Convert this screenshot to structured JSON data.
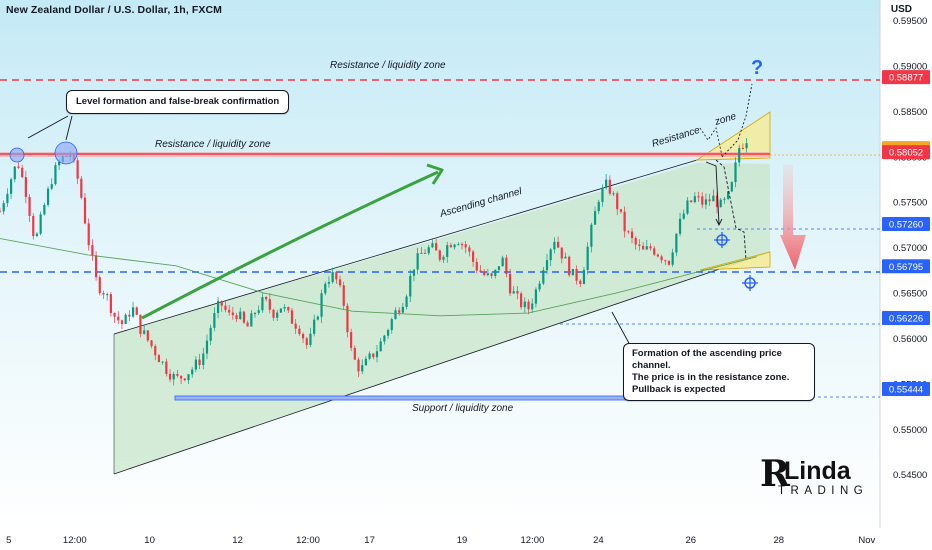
{
  "header": {
    "title": "New Zealand Dollar / U.S. Dollar, 1h, FXCM",
    "currency": "USD"
  },
  "chart_data": {
    "type": "candlestick",
    "symbol": "NZDUSD",
    "timeframe": "1h",
    "ylim": [
      0.542,
      0.5955
    ],
    "y_ticks": [
      "0.59500",
      "0.59000",
      "0.58500",
      "0.58000",
      "0.57500",
      "0.57000",
      "0.56500",
      "0.56000",
      "0.55500",
      "0.55000",
      "0.54500"
    ],
    "x_ticks": [
      "5",
      "12:00",
      "10",
      "12",
      "12:00",
      "17",
      "19",
      "12:00",
      "24",
      "26",
      "28",
      "Nov"
    ],
    "x_domain": [
      0,
      100
    ],
    "x_tick_positions": [
      1,
      8.5,
      17,
      27,
      35,
      42,
      52.5,
      60.5,
      68,
      78.5,
      88.5,
      98.5
    ],
    "price_tags": [
      {
        "value": "0.58877",
        "price": 0.58877,
        "color": "#f23645"
      },
      {
        "value": "0.58095",
        "price": 0.58095,
        "color": "#f5a623"
      },
      {
        "value": "0.58052",
        "price": 0.58052,
        "color": "#f23645"
      },
      {
        "value": "0.57260",
        "price": 0.5726,
        "color": "#2962ff"
      },
      {
        "value": "0.56795",
        "price": 0.56795,
        "color": "#2962ff"
      },
      {
        "value": "0.56226",
        "price": 0.56226,
        "color": "#2962ff"
      },
      {
        "value": "0.55444",
        "price": 0.55444,
        "color": "#2962ff"
      }
    ],
    "price_path": [
      [
        0,
        0.574
      ],
      [
        1,
        0.577
      ],
      [
        2,
        0.5795
      ],
      [
        3,
        0.576
      ],
      [
        4,
        0.5705
      ],
      [
        5,
        0.5745
      ],
      [
        6,
        0.578
      ],
      [
        7,
        0.5798
      ],
      [
        8,
        0.5803
      ],
      [
        9,
        0.577
      ],
      [
        10,
        0.571
      ],
      [
        11,
        0.566
      ],
      [
        12,
        0.565
      ],
      [
        13,
        0.5625
      ],
      [
        14,
        0.5615
      ],
      [
        15,
        0.5635
      ],
      [
        16,
        0.561
      ],
      [
        17,
        0.5595
      ],
      [
        18,
        0.558
      ],
      [
        19,
        0.5565
      ],
      [
        20,
        0.5555
      ],
      [
        21,
        0.556
      ],
      [
        22,
        0.5568
      ],
      [
        23,
        0.558
      ],
      [
        24,
        0.5615
      ],
      [
        25,
        0.564
      ],
      [
        26,
        0.5625
      ],
      [
        27,
        0.5628
      ],
      [
        28,
        0.561
      ],
      [
        29,
        0.563
      ],
      [
        30,
        0.5642
      ],
      [
        31,
        0.5628
      ],
      [
        32,
        0.5636
      ],
      [
        33,
        0.5622
      ],
      [
        34,
        0.5612
      ],
      [
        35,
        0.559
      ],
      [
        36,
        0.5625
      ],
      [
        37,
        0.5665
      ],
      [
        38,
        0.567
      ],
      [
        39,
        0.5642
      ],
      [
        40,
        0.558
      ],
      [
        41,
        0.5565
      ],
      [
        42,
        0.5578
      ],
      [
        43,
        0.559
      ],
      [
        44,
        0.561
      ],
      [
        45,
        0.563
      ],
      [
        46,
        0.5645
      ],
      [
        47,
        0.568
      ],
      [
        48,
        0.5695
      ],
      [
        49,
        0.57
      ],
      [
        50,
        0.569
      ],
      [
        51,
        0.5705
      ],
      [
        52,
        0.571
      ],
      [
        53,
        0.57
      ],
      [
        54,
        0.568
      ],
      [
        55,
        0.567
      ],
      [
        56,
        0.5665
      ],
      [
        57,
        0.569
      ],
      [
        58,
        0.5655
      ],
      [
        59,
        0.564
      ],
      [
        60,
        0.5632
      ],
      [
        61,
        0.5655
      ],
      [
        62,
        0.569
      ],
      [
        63,
        0.571
      ],
      [
        64,
        0.569
      ],
      [
        65,
        0.567
      ],
      [
        66,
        0.5665
      ],
      [
        67,
        0.571
      ],
      [
        68,
        0.5755
      ],
      [
        69,
        0.577
      ],
      [
        70,
        0.575
      ],
      [
        71,
        0.572
      ],
      [
        72,
        0.5705
      ],
      [
        73,
        0.5695
      ],
      [
        74,
        0.57
      ],
      [
        75,
        0.5692
      ],
      [
        76,
        0.5685
      ],
      [
        77,
        0.572
      ],
      [
        78,
        0.5745
      ],
      [
        79,
        0.5755
      ],
      [
        80,
        0.5748
      ],
      [
        81,
        0.5755
      ],
      [
        82,
        0.5745
      ],
      [
        83,
        0.576
      ],
      [
        84,
        0.581
      ],
      [
        85,
        0.5822
      ]
    ],
    "moving_average_path": [
      [
        0,
        0.571
      ],
      [
        10,
        0.5692
      ],
      [
        20,
        0.568
      ],
      [
        30,
        0.565
      ],
      [
        40,
        0.563
      ],
      [
        50,
        0.5625
      ],
      [
        60,
        0.5628
      ],
      [
        70,
        0.565
      ],
      [
        80,
        0.5675
      ],
      [
        86,
        0.569
      ]
    ],
    "annotations": {
      "resistance_top_label": "Resistance / liquidity zone",
      "resistance_zone_label": "Resistance / liquidity zone",
      "support_label": "Support / liquidity zone",
      "channel_label": "Ascending channel",
      "resistance_word": "Resistance",
      "zone_word": "zone",
      "question_mark": "?"
    },
    "notes": {
      "false_break": "Level formation and false-break confirmation",
      "channel_line1": "Formation of the ascending price channel.",
      "channel_line2": "The price is in the resistance zone.",
      "channel_line3": "Pullback is expected"
    },
    "colors": {
      "bull": "#089981",
      "bear": "#f23645",
      "resistance": "#f23645",
      "support": "#2962ff",
      "channel_fill": "#c8e6c9",
      "arrow": "#2e9e3e",
      "zone_yellow": "#f4ec9a",
      "background_top": "#c9ecf7"
    }
  },
  "logo": {
    "big_letter": "R",
    "name": "Linda",
    "sub": "TRADING"
  }
}
